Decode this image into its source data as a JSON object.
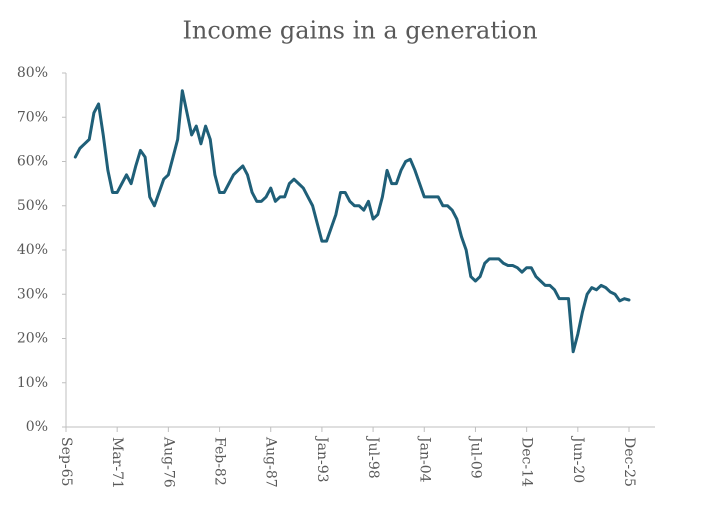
{
  "chart_data": {
    "type": "line",
    "title": "Income gains in a generation",
    "categories": [
      "Sep-65",
      null,
      null,
      null,
      null,
      null,
      null,
      null,
      null,
      null,
      null,
      "Mar-71",
      null,
      null,
      null,
      null,
      null,
      null,
      null,
      null,
      null,
      null,
      "Aug-76",
      null,
      null,
      null,
      null,
      null,
      null,
      null,
      null,
      null,
      null,
      "Feb-82",
      null,
      null,
      null,
      null,
      null,
      null,
      null,
      null,
      null,
      null,
      "Aug-87",
      null,
      null,
      null,
      null,
      null,
      null,
      null,
      null,
      null,
      null,
      "Jan-93",
      null,
      null,
      null,
      null,
      null,
      null,
      null,
      null,
      null,
      null,
      "Jul-98",
      null,
      null,
      null,
      null,
      null,
      null,
      null,
      null,
      null,
      null,
      "Jan-04",
      null,
      null,
      null,
      null,
      null,
      null,
      null,
      null,
      null,
      null,
      "Jul-09",
      null,
      null,
      null,
      null,
      null,
      null,
      null,
      null,
      null,
      null,
      "Dec-14",
      null,
      null,
      null,
      null,
      null,
      null,
      null,
      null,
      null,
      null,
      "Jun-20",
      null,
      null,
      null,
      null,
      null,
      null,
      null,
      null,
      null,
      null,
      "Dec-25"
    ],
    "series": [
      {
        "name": "Income gains",
        "color": "#1f5f78",
        "values": [
          null,
          null,
          61,
          63,
          64,
          65,
          71,
          73,
          66,
          58,
          53,
          53,
          55,
          57,
          55,
          59,
          62.5,
          61,
          52,
          50,
          53,
          56,
          57,
          61,
          65,
          76,
          71,
          66,
          68,
          64,
          68,
          65,
          57,
          53,
          53,
          55,
          57,
          58,
          59,
          57,
          53,
          51,
          51,
          52,
          54,
          51,
          52,
          52,
          55,
          56,
          55,
          54,
          52,
          50,
          46,
          42,
          42,
          45,
          48,
          53,
          53,
          51,
          50,
          50,
          49,
          51,
          47,
          48,
          52,
          58,
          55,
          55,
          58,
          60,
          60.5,
          58,
          55,
          52,
          52,
          52,
          52,
          50,
          50,
          49,
          47,
          43,
          40,
          34,
          33,
          34,
          37,
          38,
          38,
          38,
          37,
          36.5,
          36.5,
          36,
          35,
          36,
          36,
          34,
          33,
          32,
          32,
          31,
          29,
          29,
          29,
          17,
          21,
          26,
          30,
          31.5,
          31,
          32,
          31.5,
          30.5,
          30,
          28.5,
          29,
          28.7
        ]
      }
    ],
    "ylim": [
      0,
      80
    ],
    "yticks": [
      {
        "value": 0,
        "label": "0%"
      },
      {
        "value": 10,
        "label": "10%"
      },
      {
        "value": 20,
        "label": "20%"
      },
      {
        "value": 30,
        "label": "30%"
      },
      {
        "value": 40,
        "label": "40%"
      },
      {
        "value": 50,
        "label": "50%"
      },
      {
        "value": 60,
        "label": "60%"
      },
      {
        "value": 70,
        "label": "70%"
      },
      {
        "value": 80,
        "label": "80%"
      }
    ]
  }
}
